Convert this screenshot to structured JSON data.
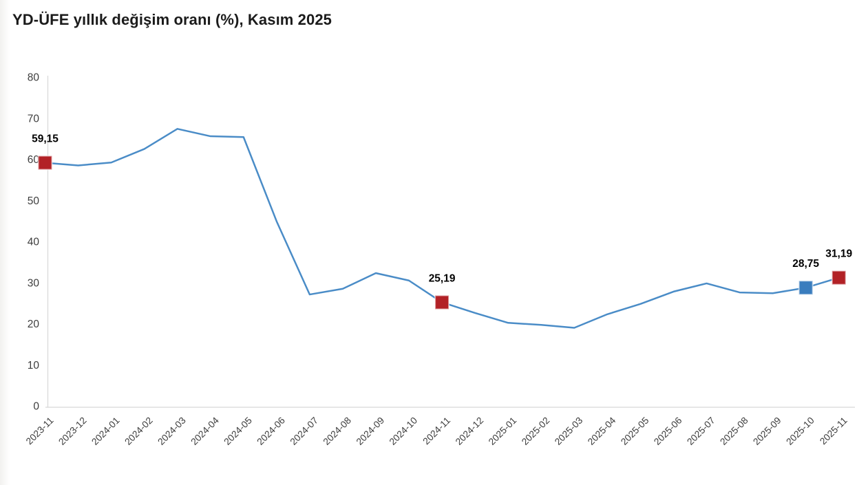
{
  "page": {
    "title": "YD-ÜFE yıllık değişim oranı (%), Kasım 2025"
  },
  "chart_data": {
    "type": "line",
    "title": "YD-ÜFE yıllık değişim oranı (%), Kasım 2025",
    "xlabel": "",
    "ylabel": "",
    "ylim": [
      0,
      80
    ],
    "yticks": [
      "0",
      "10",
      "20",
      "30",
      "40",
      "50",
      "60",
      "70",
      "80"
    ],
    "grid": false,
    "legend": "none",
    "x": [
      "2023-11",
      "2023-12",
      "2024-01",
      "2024-02",
      "2024-03",
      "2024-04",
      "2024-05",
      "2024-06",
      "2024-07",
      "2024-08",
      "2024-09",
      "2024-10",
      "2024-11",
      "2024-12",
      "2025-01",
      "2025-02",
      "2025-03",
      "2025-04",
      "2025-05",
      "2025-06",
      "2025-07",
      "2025-08",
      "2025-09",
      "2025-10",
      "2025-11"
    ],
    "series": [
      {
        "name": "YD-ÜFE yıllık değişim oranı (%)",
        "values": [
          59.15,
          58.5,
          59.2,
          62.5,
          67.4,
          65.6,
          65.4,
          44.9,
          27.1,
          28.5,
          32.3,
          30.5,
          25.19,
          22.6,
          20.2,
          19.7,
          19.0,
          22.3,
          24.8,
          27.8,
          29.8,
          27.6,
          27.4,
          28.75,
          31.19
        ]
      }
    ],
    "annotations": [
      {
        "x": "2023-11",
        "value": 59.15,
        "label": "59,15",
        "marker": "square",
        "color": "#B22126"
      },
      {
        "x": "2024-11",
        "value": 25.19,
        "label": "25,19",
        "marker": "square",
        "color": "#B22126"
      },
      {
        "x": "2025-10",
        "value": 28.75,
        "label": "28,75",
        "marker": "square",
        "color": "#3A7DBE"
      },
      {
        "x": "2025-11",
        "value": 31.19,
        "label": "31,19",
        "marker": "square",
        "color": "#B22126"
      }
    ],
    "colors": {
      "line": "#4A8CC7",
      "marker_red": "#B22126",
      "marker_blue": "#3A7DBE",
      "axis": "#D8D8D8",
      "axis_text": "#3D3D3D",
      "data_label_text": "#000000",
      "title_text": "#1B1B1B",
      "background": "#FFFFFF"
    }
  }
}
